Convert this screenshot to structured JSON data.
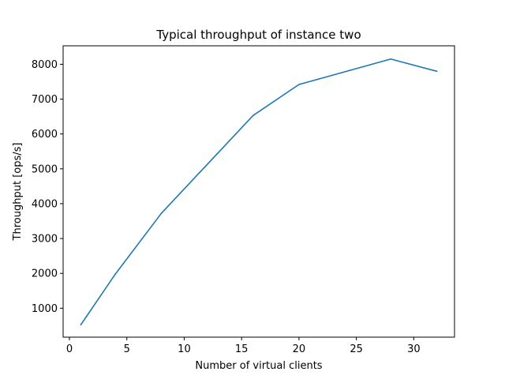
{
  "chart_data": {
    "type": "line",
    "title": "Typical throughput of instance two",
    "xlabel": "Number of virtual clients",
    "ylabel": "Throughput [ops/s]",
    "xlim": [
      -0.55,
      33.55
    ],
    "ylim": [
      170,
      8530
    ],
    "xticks": [
      0,
      5,
      10,
      15,
      20,
      25,
      30
    ],
    "yticks": [
      1000,
      2000,
      3000,
      4000,
      5000,
      6000,
      7000,
      8000
    ],
    "grid": false,
    "series_color": "#1f77b4",
    "series": [
      {
        "x": [
          1,
          4,
          8,
          16,
          20,
          28,
          32
        ],
        "y": [
          530,
          1980,
          3720,
          6530,
          7420,
          8150,
          7800
        ]
      }
    ]
  }
}
